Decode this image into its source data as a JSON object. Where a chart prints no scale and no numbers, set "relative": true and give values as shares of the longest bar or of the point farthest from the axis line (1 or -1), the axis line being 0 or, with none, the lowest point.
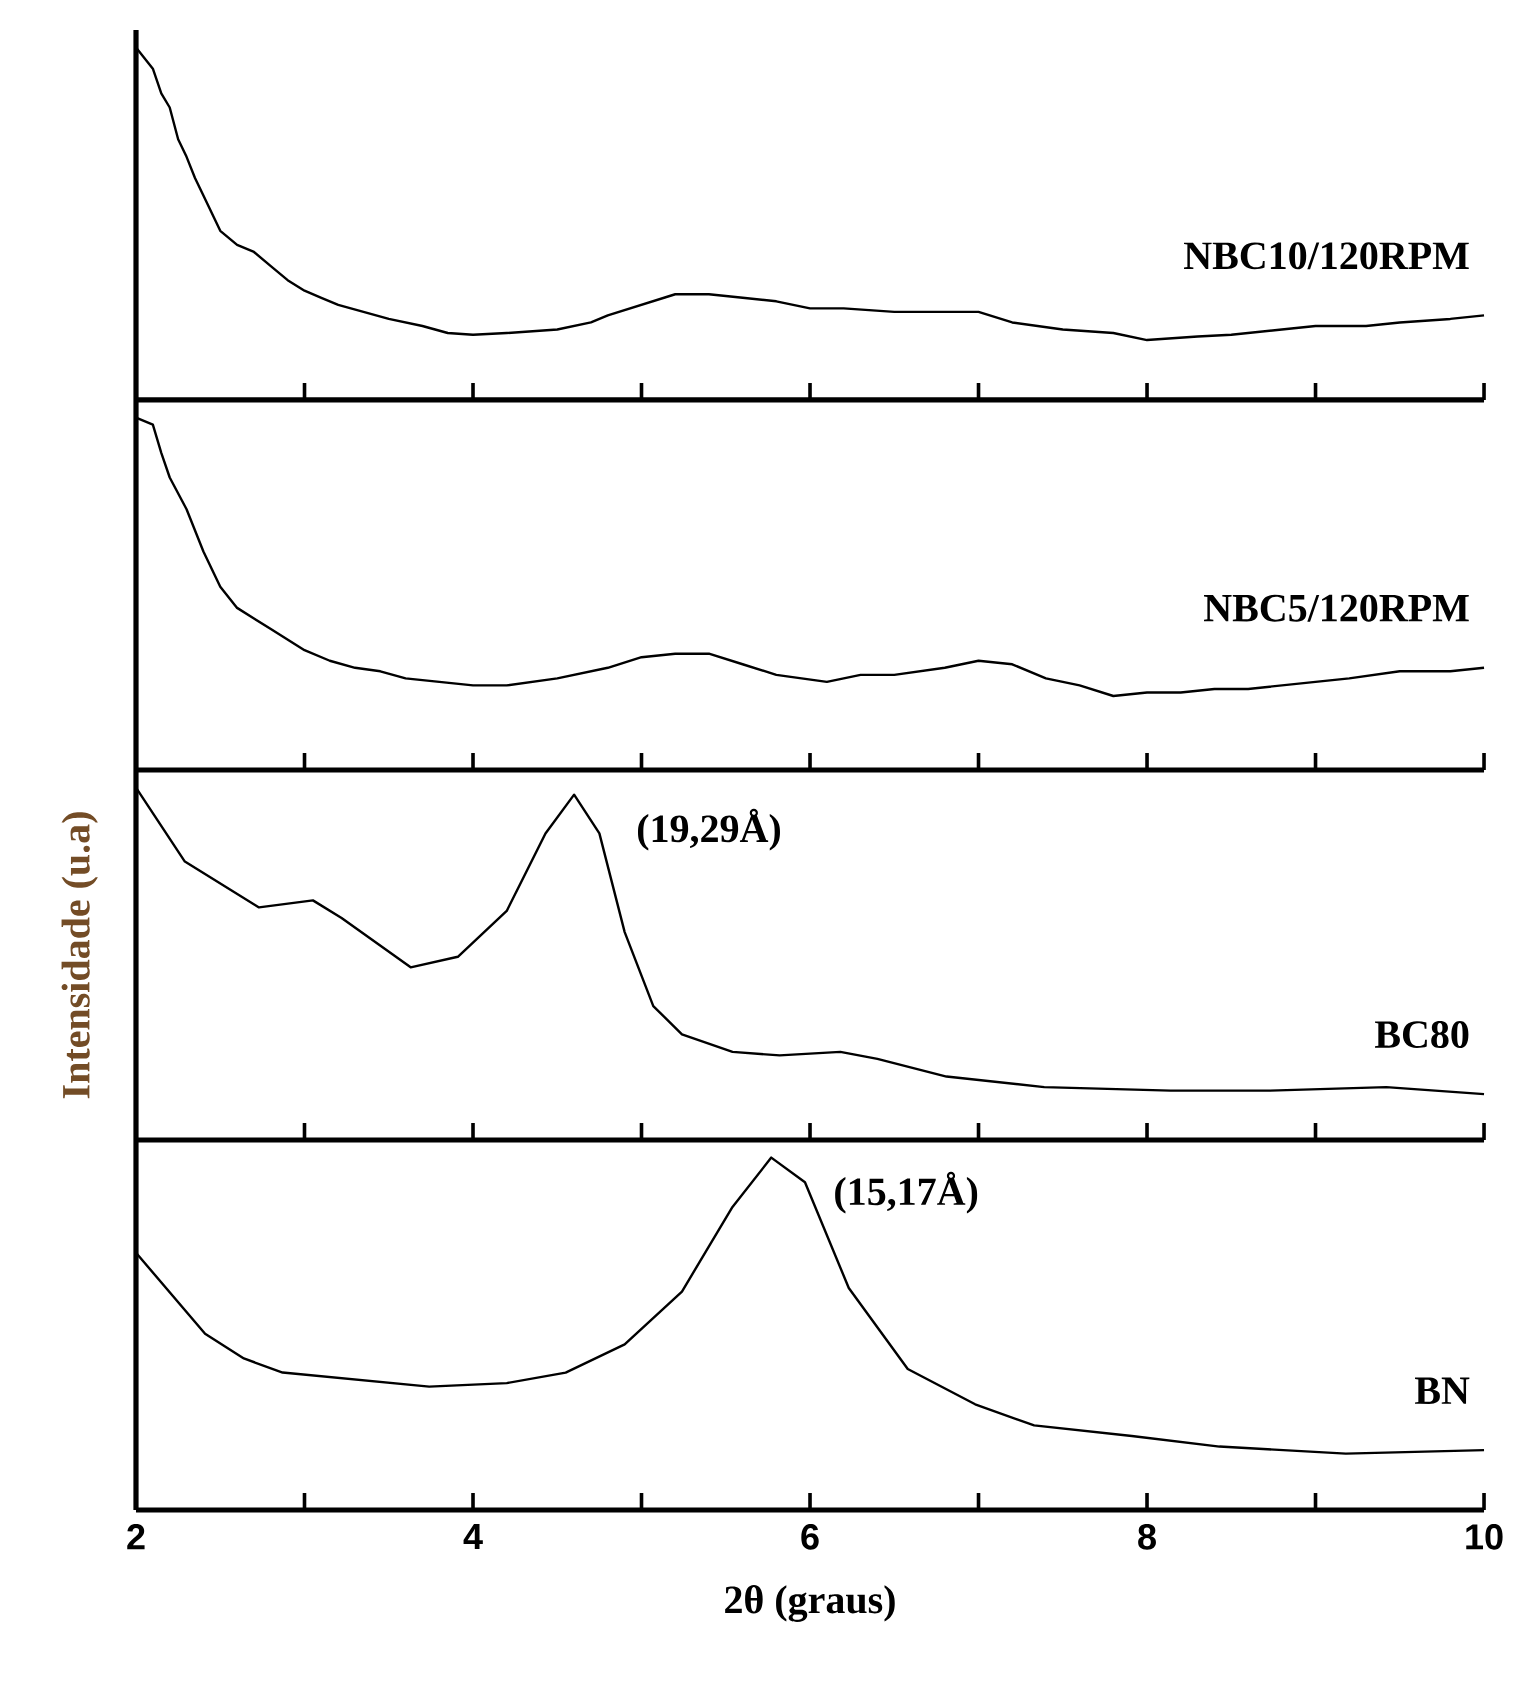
{
  "chart_data": [
    {
      "type": "line",
      "relative": true,
      "xlim": [
        2,
        10
      ],
      "xticks": [
        2,
        {
          "value": 3,
          "label": null
        },
        4,
        {
          "value": 5,
          "label": null
        },
        6,
        {
          "value": 7,
          "label": null
        },
        8,
        {
          "value": 9,
          "label": null
        },
        10
      ],
      "tick_labels": false,
      "series": [
        {
          "name": "NBC10/120RPM",
          "color": "#000000",
          "x": [
            2.0,
            2.05,
            2.1,
            2.15,
            2.2,
            2.25,
            2.3,
            2.35,
            2.4,
            2.5,
            2.6,
            2.7,
            2.8,
            2.9,
            3.0,
            3.1,
            3.2,
            3.35,
            3.5,
            3.7,
            3.85,
            4.0,
            4.2,
            4.5,
            4.7,
            4.8,
            5.0,
            5.2,
            5.4,
            5.6,
            5.8,
            6.0,
            6.2,
            6.5,
            6.8,
            7.0,
            7.2,
            7.5,
            7.8,
            8.0,
            8.3,
            8.5,
            8.8,
            9.0,
            9.3,
            9.5,
            9.8,
            10.0
          ],
          "values": [
            1.0,
            0.97,
            0.94,
            0.87,
            0.83,
            0.74,
            0.69,
            0.63,
            0.58,
            0.48,
            0.44,
            0.42,
            0.38,
            0.34,
            0.31,
            0.29,
            0.27,
            0.25,
            0.23,
            0.21,
            0.19,
            0.185,
            0.19,
            0.2,
            0.22,
            0.24,
            0.27,
            0.3,
            0.3,
            0.29,
            0.28,
            0.26,
            0.26,
            0.25,
            0.25,
            0.25,
            0.22,
            0.2,
            0.19,
            0.17,
            0.18,
            0.185,
            0.2,
            0.21,
            0.21,
            0.22,
            0.23,
            0.24
          ]
        }
      ]
    },
    {
      "type": "line",
      "relative": true,
      "xlim": [
        2,
        10
      ],
      "xticks": [
        2,
        {
          "value": 3,
          "label": null
        },
        4,
        {
          "value": 5,
          "label": null
        },
        6,
        {
          "value": 7,
          "label": null
        },
        8,
        {
          "value": 9,
          "label": null
        },
        10
      ],
      "tick_labels": false,
      "series": [
        {
          "name": "NBC5/120RPM",
          "color": "#000000",
          "x": [
            2.0,
            2.1,
            2.15,
            2.2,
            2.3,
            2.4,
            2.5,
            2.6,
            2.7,
            2.8,
            3.0,
            3.15,
            3.3,
            3.45,
            3.6,
            3.8,
            4.0,
            4.2,
            4.5,
            4.8,
            5.0,
            5.2,
            5.4,
            5.6,
            5.8,
            6.1,
            6.3,
            6.5,
            6.8,
            7.0,
            7.2,
            7.4,
            7.6,
            7.8,
            8.0,
            8.2,
            8.4,
            8.6,
            8.8,
            9.0,
            9.2,
            9.5,
            9.8,
            10.0
          ],
          "values": [
            1.0,
            0.98,
            0.9,
            0.83,
            0.74,
            0.62,
            0.52,
            0.46,
            0.43,
            0.4,
            0.34,
            0.31,
            0.29,
            0.28,
            0.26,
            0.25,
            0.24,
            0.24,
            0.26,
            0.29,
            0.32,
            0.33,
            0.33,
            0.3,
            0.27,
            0.25,
            0.27,
            0.27,
            0.29,
            0.31,
            0.3,
            0.26,
            0.24,
            0.21,
            0.22,
            0.22,
            0.23,
            0.23,
            0.24,
            0.25,
            0.26,
            0.28,
            0.28,
            0.29
          ]
        }
      ]
    },
    {
      "type": "line",
      "relative": true,
      "xlim": [
        2,
        10
      ],
      "xticks": [
        2,
        {
          "value": 3,
          "label": null
        },
        4,
        {
          "value": 5,
          "label": null
        },
        6,
        {
          "value": 7,
          "label": null
        },
        8,
        {
          "value": 9,
          "label": null
        },
        10
      ],
      "tick_labels": false,
      "ylabel": "Intensidade (u.a)",
      "annotations": [
        {
          "text": "(19,29Å)",
          "x": 4.6,
          "y": 0.98
        }
      ],
      "series": [
        {
          "name": "BC80",
          "color": "#000000",
          "x": [
            2.0,
            2.29,
            2.73,
            3.05,
            3.22,
            3.63,
            3.91,
            4.2,
            4.43,
            4.6,
            4.75,
            4.9,
            5.07,
            5.24,
            5.54,
            5.82,
            6.18,
            6.4,
            6.81,
            7.39,
            8.14,
            8.72,
            9.42,
            10.0
          ],
          "values": [
            1.0,
            0.79,
            0.66,
            0.68,
            0.63,
            0.49,
            0.52,
            0.65,
            0.87,
            0.98,
            0.87,
            0.59,
            0.38,
            0.3,
            0.25,
            0.24,
            0.25,
            0.23,
            0.18,
            0.15,
            0.14,
            0.14,
            0.15,
            0.13
          ]
        }
      ]
    },
    {
      "type": "line",
      "relative": true,
      "xlim": [
        2,
        10
      ],
      "xticks": [
        2,
        {
          "value": 3,
          "label": null
        },
        4,
        {
          "value": 5,
          "label": null
        },
        6,
        {
          "value": 7,
          "label": null
        },
        8,
        {
          "value": 9,
          "label": null
        },
        10
      ],
      "tick_labels": "x",
      "xlabel": "2θ (graus)",
      "annotations": [
        {
          "text": "(15,17Å)",
          "x": 5.77,
          "y": 1.0
        }
      ],
      "series": [
        {
          "name": "BN",
          "color": "#000000",
          "x": [
            2.0,
            2.41,
            2.64,
            2.87,
            3.74,
            4.2,
            4.55,
            4.9,
            5.24,
            5.54,
            5.77,
            5.97,
            6.23,
            6.58,
            6.98,
            7.33,
            7.91,
            8.43,
            9.18,
            10.0
          ],
          "values": [
            0.73,
            0.5,
            0.43,
            0.39,
            0.35,
            0.36,
            0.39,
            0.47,
            0.62,
            0.86,
            1.0,
            0.93,
            0.63,
            0.4,
            0.3,
            0.24,
            0.21,
            0.18,
            0.16,
            0.17
          ]
        }
      ]
    }
  ]
}
